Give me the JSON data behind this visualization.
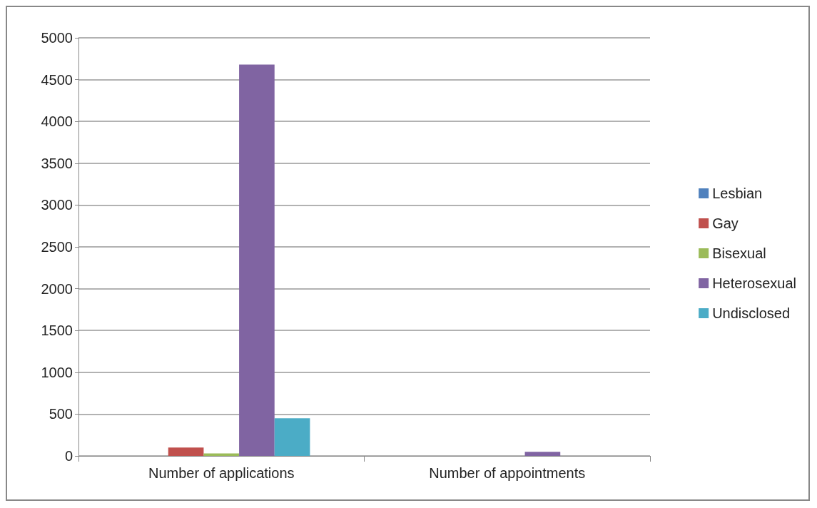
{
  "chart_data": {
    "type": "bar",
    "categories": [
      "Number of applications",
      "Number of appointments"
    ],
    "series": [
      {
        "name": "Lesbian",
        "color": "#4f81bd",
        "values": [
          0,
          0
        ]
      },
      {
        "name": "Gay",
        "color": "#c0504d",
        "values": [
          100,
          0
        ]
      },
      {
        "name": "Bisexual",
        "color": "#9bbb59",
        "values": [
          30,
          0
        ]
      },
      {
        "name": "Heterosexual",
        "color": "#8064a2",
        "values": [
          4680,
          50
        ]
      },
      {
        "name": "Undisclosed",
        "color": "#4bacc6",
        "values": [
          450,
          0
        ]
      }
    ],
    "ylim": [
      0,
      5000
    ],
    "yticks": [
      0,
      500,
      1000,
      1500,
      2000,
      2500,
      3000,
      3500,
      4000,
      4500,
      5000
    ],
    "grid": "y",
    "legend": "right"
  }
}
